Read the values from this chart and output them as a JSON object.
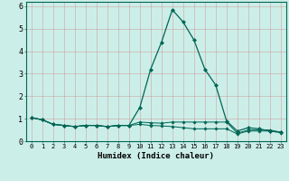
{
  "xlabel": "Humidex (Indice chaleur)",
  "bg_color": "#cceee8",
  "grid_color": "#cc9999",
  "line_color": "#006655",
  "x": [
    0,
    1,
    2,
    3,
    4,
    5,
    6,
    7,
    8,
    9,
    10,
    11,
    12,
    13,
    14,
    15,
    16,
    17,
    18,
    19,
    20,
    21,
    22,
    23
  ],
  "y_main": [
    1.05,
    0.95,
    0.75,
    0.7,
    0.65,
    0.7,
    0.7,
    0.65,
    0.7,
    0.7,
    1.5,
    3.2,
    4.4,
    5.85,
    5.3,
    4.5,
    3.2,
    2.5,
    0.9,
    0.45,
    0.6,
    0.55,
    0.45,
    0.4
  ],
  "y_flat1": [
    1.05,
    0.95,
    0.75,
    0.7,
    0.65,
    0.7,
    0.7,
    0.65,
    0.7,
    0.7,
    0.85,
    0.82,
    0.8,
    0.85,
    0.85,
    0.85,
    0.85,
    0.85,
    0.85,
    0.35,
    0.5,
    0.5,
    0.5,
    0.4
  ],
  "y_flat2": [
    1.05,
    0.95,
    0.75,
    0.7,
    0.65,
    0.7,
    0.7,
    0.65,
    0.7,
    0.7,
    0.75,
    0.7,
    0.68,
    0.65,
    0.6,
    0.55,
    0.55,
    0.55,
    0.55,
    0.32,
    0.45,
    0.45,
    0.45,
    0.38
  ],
  "ylim": [
    0,
    6.2
  ],
  "xlim": [
    -0.5,
    23.5
  ],
  "yticks": [
    0,
    1,
    2,
    3,
    4,
    5,
    6
  ]
}
